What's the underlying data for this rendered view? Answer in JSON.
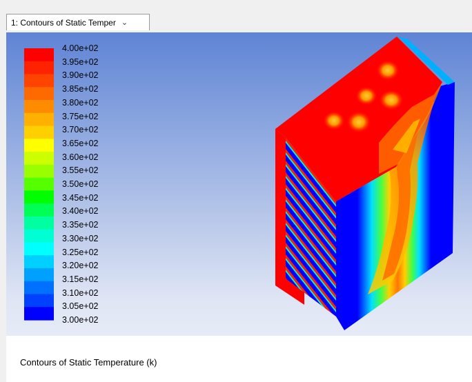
{
  "tab": {
    "label": "1: Contours of Static Temper",
    "chevron": "chevron-down-icon"
  },
  "legend": {
    "ticks": [
      "4.00e+02",
      "3.95e+02",
      "3.90e+02",
      "3.85e+02",
      "3.80e+02",
      "3.75e+02",
      "3.70e+02",
      "3.65e+02",
      "3.60e+02",
      "3.55e+02",
      "3.50e+02",
      "3.45e+02",
      "3.40e+02",
      "3.35e+02",
      "3.30e+02",
      "3.25e+02",
      "3.20e+02",
      "3.15e+02",
      "3.10e+02",
      "3.05e+02",
      "3.00e+02"
    ],
    "colors": [
      "#ff0000",
      "#ff2200",
      "#ff4400",
      "#ff6a00",
      "#ff8c00",
      "#ffb000",
      "#ffd000",
      "#ffff00",
      "#ccff00",
      "#99ff00",
      "#55ff00",
      "#00ff00",
      "#00ff55",
      "#00ffa0",
      "#00ffd5",
      "#00ffff",
      "#00d0ff",
      "#00a0ff",
      "#0070ff",
      "#0040ff",
      "#0000ff"
    ]
  },
  "caption": "Contours of Static Temperature (k)"
}
